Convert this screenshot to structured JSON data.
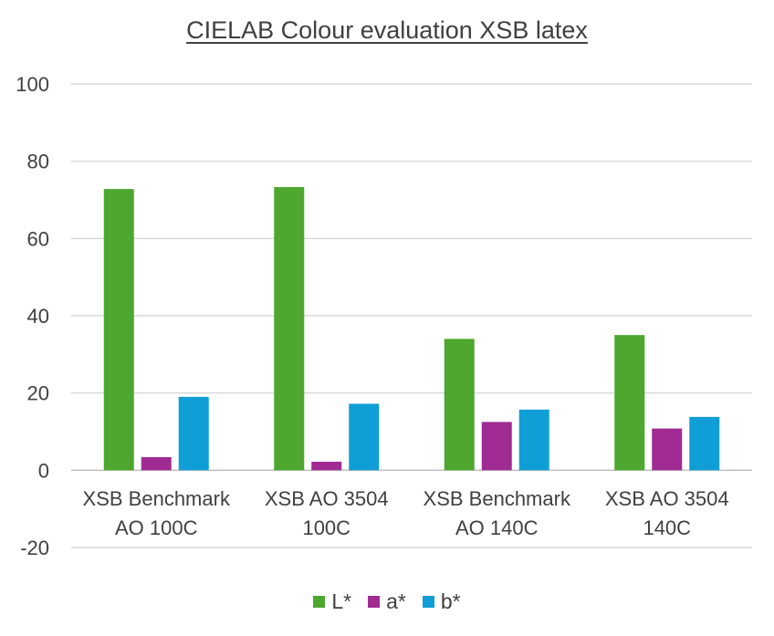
{
  "chart_data": {
    "type": "bar",
    "title": "CIELAB Colour evaluation XSB latex",
    "xlabel": "",
    "ylabel": "",
    "ylim": [
      -20,
      100
    ],
    "yticks": [
      100,
      80,
      60,
      40,
      20,
      0,
      -20
    ],
    "grid": true,
    "legend_position": "bottom",
    "categories": [
      [
        "XSB Benchmark",
        "AO 100C"
      ],
      [
        "XSB AO 3504",
        "100C"
      ],
      [
        "XSB Benchmark",
        "AO 140C"
      ],
      [
        "XSB AO 3504",
        "140C"
      ]
    ],
    "series": [
      {
        "name": "L*",
        "color": "#4ea72e",
        "values": [
          72.8,
          73.3,
          34.0,
          35.0
        ]
      },
      {
        "name": "a*",
        "color": "#a02b93",
        "values": [
          3.4,
          2.2,
          12.5,
          10.8
        ]
      },
      {
        "name": "b*",
        "color": "#0f9ed5",
        "values": [
          19.0,
          17.2,
          15.7,
          13.8
        ]
      }
    ]
  }
}
